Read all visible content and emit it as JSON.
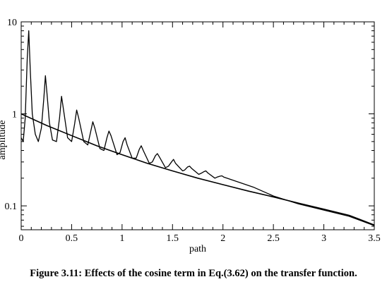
{
  "caption": "Figure 3.11: Effects of the cosine term in Eq.(3.62) on the transfer function.",
  "chart_data": {
    "type": "line",
    "xlabel": "path",
    "ylabel": "amplitude",
    "xlim": [
      0,
      3.5
    ],
    "ylim": [
      0.055,
      10
    ],
    "yscale": "log",
    "grid": false,
    "line_color": "#000000",
    "x_ticks": [
      0,
      0.5,
      1,
      1.5,
      2,
      2.5,
      3,
      3.5
    ],
    "x_tick_labels": [
      "0",
      "0.5",
      "1",
      "1.5",
      "2",
      "2.5",
      "3",
      "3.5"
    ],
    "y_ticks": [
      0.1,
      1,
      10
    ],
    "y_tick_labels": [
      "0.1",
      "1",
      "10"
    ],
    "series": [
      {
        "values_note": "",
        "x": [
          0,
          0.25,
          0.5,
          0.75,
          1.0,
          1.25,
          1.5,
          1.75,
          2.0,
          2.25,
          2.5,
          2.75,
          3.0,
          3.25,
          3.5
        ],
        "y": [
          1.0,
          0.75,
          0.58,
          0.45,
          0.36,
          0.29,
          0.24,
          0.2,
          0.17,
          0.145,
          0.125,
          0.107,
          0.092,
          0.079,
          0.062
        ]
      },
      {
        "x": [
          0,
          0.02,
          0.04,
          0.06,
          0.075,
          0.09,
          0.11,
          0.14,
          0.17,
          0.2,
          0.225,
          0.24,
          0.255,
          0.28,
          0.31,
          0.35,
          0.38,
          0.4,
          0.42,
          0.46,
          0.5,
          0.53,
          0.55,
          0.57,
          0.62,
          0.66,
          0.69,
          0.71,
          0.73,
          0.78,
          0.82,
          0.85,
          0.87,
          0.89,
          0.95,
          0.98,
          1.01,
          1.03,
          1.05,
          1.1,
          1.14,
          1.17,
          1.19,
          1.21,
          1.27,
          1.3,
          1.33,
          1.35,
          1.37,
          1.43,
          1.46,
          1.49,
          1.51,
          1.53,
          1.6,
          1.62,
          1.65,
          1.67,
          1.69,
          1.76,
          1.78,
          1.81,
          1.83,
          1.85,
          1.92,
          1.94,
          1.97,
          1.99,
          2.01,
          2.1,
          2.3,
          2.5,
          2.75,
          3.0,
          3.25,
          3.5
        ],
        "y": [
          0.55,
          0.5,
          0.9,
          4.0,
          8.0,
          3.0,
          1.0,
          0.6,
          0.5,
          0.7,
          1.5,
          2.6,
          1.7,
          0.8,
          0.52,
          0.5,
          0.9,
          1.55,
          1.1,
          0.55,
          0.5,
          0.78,
          1.1,
          0.9,
          0.5,
          0.46,
          0.65,
          0.82,
          0.7,
          0.42,
          0.4,
          0.55,
          0.65,
          0.58,
          0.36,
          0.38,
          0.5,
          0.55,
          0.46,
          0.33,
          0.33,
          0.41,
          0.45,
          0.4,
          0.29,
          0.3,
          0.35,
          0.37,
          0.34,
          0.26,
          0.27,
          0.3,
          0.32,
          0.29,
          0.24,
          0.245,
          0.265,
          0.27,
          0.255,
          0.22,
          0.225,
          0.235,
          0.24,
          0.228,
          0.2,
          0.205,
          0.21,
          0.212,
          0.205,
          0.19,
          0.16,
          0.128,
          0.105,
          0.09,
          0.077,
          0.061
        ]
      }
    ]
  }
}
